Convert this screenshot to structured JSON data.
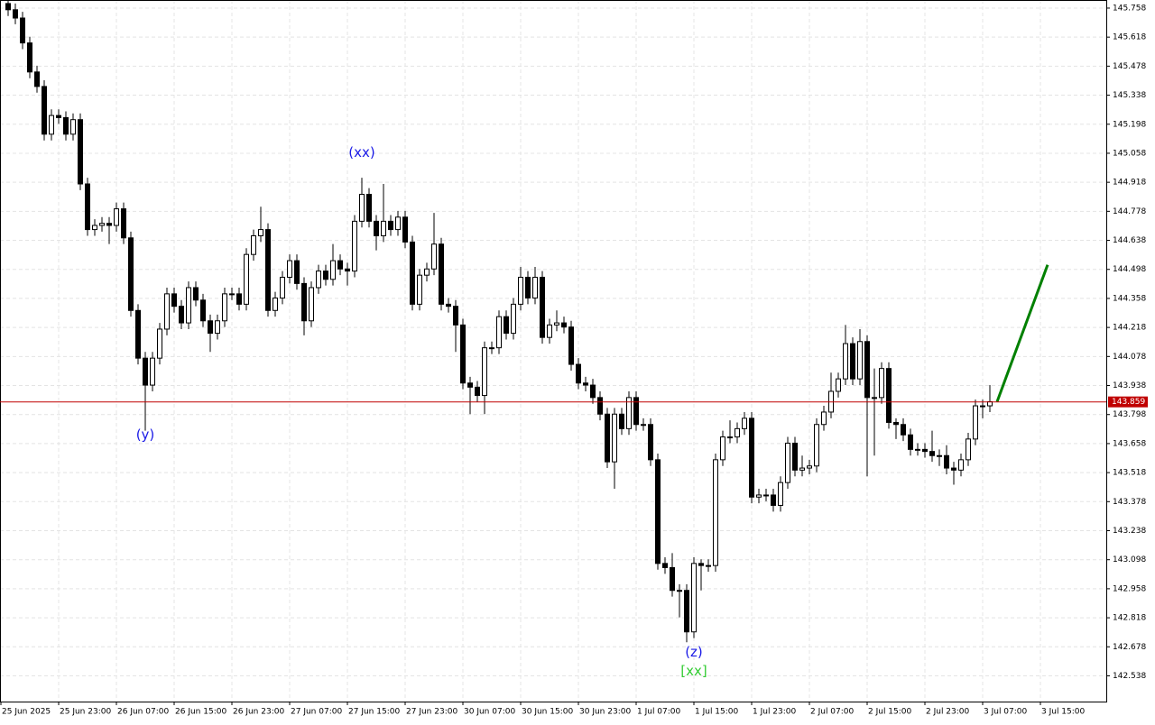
{
  "chart_data": {
    "type": "candlestick",
    "color": "#000000",
    "up_fill": "#ffffff",
    "down_fill": "#000000",
    "grid": true,
    "xlim": [
      -1.125,
      152.125
    ],
    "xticks": [
      {
        "value": -1,
        "label": "25 Jun 2025"
      },
      {
        "value": 7,
        "label": "25 Jun 23:00"
      },
      {
        "value": 15,
        "label": "26 Jun 07:00"
      },
      {
        "value": 23,
        "label": "26 Jun 15:00"
      },
      {
        "value": 31,
        "label": "26 Jun 23:00"
      },
      {
        "value": 39,
        "label": "27 Jun 07:00"
      },
      {
        "value": 47,
        "label": "27 Jun 15:00"
      },
      {
        "value": 55,
        "label": "27 Jun 23:00"
      },
      {
        "value": 63,
        "label": "30 Jun 07:00"
      },
      {
        "value": 71,
        "label": "30 Jun 15:00"
      },
      {
        "value": 79,
        "label": "30 Jun 23:00"
      },
      {
        "value": 87,
        "label": "1 Jul 07:00"
      },
      {
        "value": 95,
        "label": "1 Jul 15:00"
      },
      {
        "value": 103,
        "label": "1 Jul 23:00"
      },
      {
        "value": 111,
        "label": "2 Jul 07:00"
      },
      {
        "value": 119,
        "label": "2 Jul 15:00"
      },
      {
        "value": 127,
        "label": "2 Jul 23:00"
      },
      {
        "value": 135,
        "label": "3 Jul 07:00"
      },
      {
        "value": 143,
        "label": "3 Jul 15:00"
      }
    ],
    "ylim": [
      142.414,
      145.797
    ],
    "yticks": [
      145.758,
      145.618,
      145.478,
      145.338,
      145.198,
      145.058,
      144.918,
      144.778,
      144.638,
      144.498,
      144.358,
      144.218,
      144.078,
      143.938,
      143.798,
      143.658,
      143.518,
      143.378,
      143.238,
      143.098,
      142.958,
      142.818,
      142.678,
      142.538
    ],
    "open": [
      145.78,
      145.75,
      145.71,
      145.59,
      145.45,
      145.38,
      145.15,
      145.24,
      145.23,
      145.15,
      145.22,
      144.91,
      144.69,
      144.71,
      144.72,
      144.71,
      144.79,
      144.65,
      144.3,
      144.07,
      143.94,
      144.07,
      144.21,
      144.38,
      144.32,
      144.24,
      144.41,
      144.35,
      144.25,
      144.19,
      144.25,
      144.38,
      144.38,
      144.33,
      144.57,
      144.66,
      144.69,
      144.3,
      144.36,
      144.46,
      144.54,
      144.43,
      144.25,
      144.41,
      144.49,
      144.45,
      144.54,
      144.5,
      144.49,
      144.73,
      144.86,
      144.73,
      144.66,
      144.73,
      144.69,
      144.75,
      144.63,
      144.33,
      144.47,
      144.5,
      144.62,
      144.33,
      144.32,
      144.23,
      143.95,
      143.93,
      143.89,
      144.12,
      144.12,
      144.27,
      144.19,
      144.33,
      144.46,
      144.36,
      144.46,
      144.17,
      144.23,
      144.24,
      144.22,
      144.04,
      143.95,
      143.94,
      143.88,
      143.8,
      143.57,
      143.8,
      143.73,
      143.88,
      143.75,
      143.75,
      143.58,
      143.08,
      143.06,
      142.95,
      142.95,
      142.75,
      143.08,
      143.07,
      143.07,
      143.58,
      143.69,
      143.69,
      143.73,
      143.78,
      143.4,
      143.41,
      143.41,
      143.36,
      143.47,
      143.66,
      143.53,
      143.54,
      143.55,
      143.75,
      143.81,
      143.91,
      143.97,
      144.14,
      143.97,
      144.15,
      143.88,
      143.88,
      144.02,
      143.76,
      143.75,
      143.7,
      143.63,
      143.63,
      143.62,
      143.6,
      143.6,
      143.54,
      143.53,
      143.58,
      143.68,
      143.84,
      143.84
    ],
    "high": [
      145.81,
      145.78,
      145.74,
      145.62,
      145.48,
      145.41,
      145.27,
      145.27,
      145.26,
      145.25,
      145.25,
      144.94,
      144.74,
      144.75,
      144.75,
      144.82,
      144.82,
      144.68,
      144.33,
      144.1,
      144.1,
      144.24,
      144.41,
      144.41,
      144.35,
      144.44,
      144.44,
      144.38,
      144.28,
      144.28,
      144.41,
      144.41,
      144.41,
      144.6,
      144.69,
      144.8,
      144.72,
      144.39,
      144.49,
      144.57,
      144.57,
      144.46,
      144.44,
      144.52,
      144.52,
      144.62,
      144.57,
      144.53,
      144.76,
      144.94,
      144.89,
      144.76,
      144.91,
      144.76,
      144.78,
      144.78,
      144.66,
      144.5,
      144.53,
      144.77,
      144.65,
      144.36,
      144.35,
      144.26,
      143.98,
      143.96,
      144.15,
      144.15,
      144.3,
      144.3,
      144.36,
      144.51,
      144.49,
      144.51,
      144.49,
      144.26,
      144.3,
      144.27,
      144.25,
      144.07,
      143.98,
      143.97,
      143.91,
      143.83,
      143.83,
      143.83,
      143.91,
      143.91,
      143.78,
      143.78,
      143.61,
      143.11,
      143.13,
      142.98,
      142.98,
      143.11,
      143.1,
      143.1,
      143.61,
      143.72,
      143.77,
      143.76,
      143.81,
      143.81,
      143.44,
      143.44,
      143.44,
      143.5,
      143.69,
      143.69,
      143.6,
      143.58,
      143.78,
      143.84,
      144.0,
      144.0,
      144.23,
      144.17,
      144.21,
      144.18,
      144.02,
      144.05,
      144.05,
      143.78,
      143.78,
      143.73,
      143.66,
      143.66,
      143.72,
      143.63,
      143.65,
      143.57,
      143.61,
      143.71,
      143.87,
      143.87,
      143.94
    ],
    "low": [
      145.72,
      145.68,
      145.56,
      145.42,
      145.35,
      145.12,
      145.12,
      145.2,
      145.12,
      145.12,
      144.88,
      144.66,
      144.66,
      144.68,
      144.62,
      144.68,
      144.62,
      144.27,
      144.04,
      143.72,
      143.91,
      144.04,
      144.18,
      144.29,
      144.21,
      144.21,
      144.32,
      144.22,
      144.1,
      144.16,
      144.22,
      144.35,
      144.3,
      144.3,
      144.54,
      144.63,
      144.27,
      144.27,
      144.33,
      144.43,
      144.4,
      144.18,
      144.22,
      144.38,
      144.42,
      144.42,
      144.47,
      144.42,
      144.46,
      144.7,
      144.7,
      144.59,
      144.63,
      144.66,
      144.66,
      144.6,
      144.3,
      144.3,
      144.44,
      144.47,
      144.3,
      144.29,
      144.1,
      143.92,
      143.8,
      143.86,
      143.8,
      144.09,
      144.09,
      144.16,
      144.16,
      144.3,
      144.33,
      144.33,
      144.14,
      144.14,
      144.2,
      144.19,
      144.01,
      143.92,
      143.91,
      143.85,
      143.77,
      143.54,
      143.44,
      143.7,
      143.7,
      143.72,
      143.72,
      143.55,
      143.05,
      143.03,
      142.92,
      142.82,
      142.7,
      142.72,
      142.95,
      143.04,
      143.04,
      143.55,
      143.66,
      143.66,
      143.7,
      143.37,
      143.37,
      143.38,
      143.33,
      143.33,
      143.44,
      143.5,
      143.5,
      143.51,
      143.52,
      143.72,
      143.78,
      143.88,
      143.94,
      143.94,
      143.94,
      143.5,
      143.6,
      143.85,
      143.73,
      143.68,
      143.67,
      143.6,
      143.6,
      143.59,
      143.57,
      143.55,
      143.51,
      143.46,
      143.5,
      143.55,
      143.65,
      143.78,
      143.81
    ],
    "close": [
      145.75,
      145.71,
      145.59,
      145.45,
      145.38,
      145.15,
      145.24,
      145.23,
      145.15,
      145.22,
      144.91,
      144.69,
      144.71,
      144.72,
      144.71,
      144.79,
      144.65,
      144.3,
      144.07,
      143.94,
      144.07,
      144.21,
      144.38,
      144.32,
      144.24,
      144.41,
      144.35,
      144.25,
      144.19,
      144.25,
      144.38,
      144.38,
      144.33,
      144.57,
      144.66,
      144.69,
      144.3,
      144.36,
      144.46,
      144.54,
      144.43,
      144.25,
      144.41,
      144.49,
      144.45,
      144.54,
      144.5,
      144.49,
      144.73,
      144.86,
      144.73,
      144.66,
      144.73,
      144.69,
      144.75,
      144.63,
      144.33,
      144.47,
      144.5,
      144.62,
      144.33,
      144.32,
      144.23,
      143.95,
      143.93,
      143.89,
      144.12,
      144.12,
      144.27,
      144.19,
      144.33,
      144.46,
      144.36,
      144.46,
      144.17,
      144.23,
      144.24,
      144.22,
      144.04,
      143.95,
      143.94,
      143.88,
      143.8,
      143.57,
      143.8,
      143.73,
      143.88,
      143.75,
      143.75,
      143.58,
      143.08,
      143.06,
      142.95,
      142.95,
      142.75,
      143.08,
      143.07,
      143.07,
      143.58,
      143.69,
      143.69,
      143.73,
      143.78,
      143.4,
      143.41,
      143.41,
      143.36,
      143.47,
      143.66,
      143.53,
      143.54,
      143.55,
      143.75,
      143.81,
      143.91,
      143.97,
      144.14,
      143.97,
      144.15,
      143.88,
      143.88,
      144.02,
      143.76,
      143.75,
      143.7,
      143.63,
      143.63,
      143.62,
      143.6,
      143.6,
      143.54,
      143.53,
      143.58,
      143.68,
      143.84,
      143.84,
      143.86
    ],
    "current_price": 143.859,
    "current_price_color": "#c00000",
    "projection": {
      "x": [
        137,
        144
      ],
      "values": [
        143.86,
        144.52
      ],
      "color": "#008000"
    },
    "annotations": [
      {
        "text": "(y)",
        "x": 19,
        "y": 143.7,
        "color": "#1a1ae6"
      },
      {
        "text": "(xx)",
        "x": 49,
        "y": 145.06,
        "color": "#1a1ae6"
      },
      {
        "text": "(z)",
        "x": 95,
        "y": 142.65,
        "color": "#1a1ae6"
      },
      {
        "text": "[xx]",
        "x": 95,
        "y": 142.56,
        "color": "#33cc33"
      }
    ]
  }
}
